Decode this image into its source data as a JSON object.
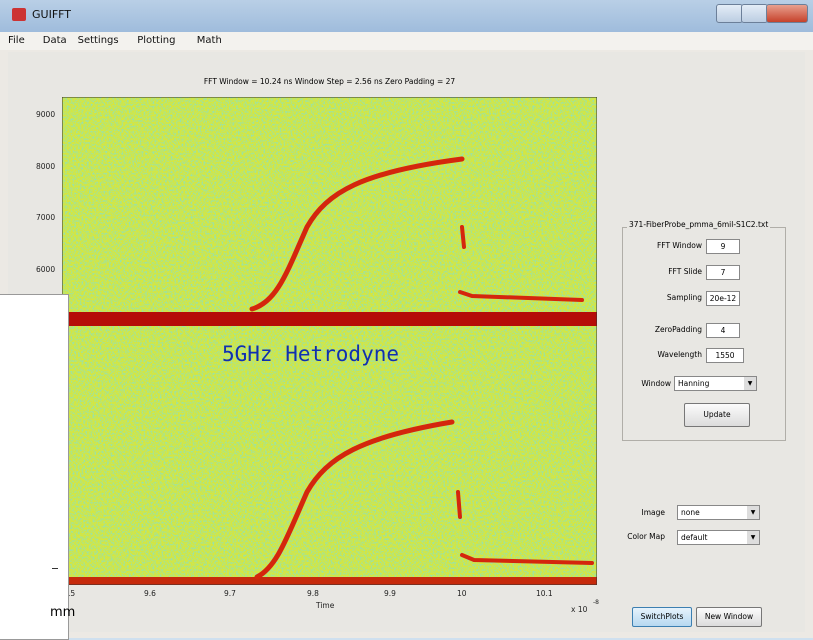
{
  "window": {
    "title": "GUIFFT",
    "menu": [
      "File",
      "Data",
      "Settings",
      "Plotting",
      "Math"
    ]
  },
  "plot": {
    "title": "FFT Window = 10.24 ns Window Step = 2.56 ns Zero Padding  = 27",
    "yticks": [
      "9000",
      "8000",
      "7000",
      "6000"
    ],
    "xticks": [
      ".5",
      "9.6",
      "9.7",
      "9.8",
      "9.9",
      "10",
      "10.1"
    ],
    "xlabel": "Time",
    "x_exponent_base": "x 10",
    "x_exponent": "-8",
    "annotation": "5GHz Hetrodyne"
  },
  "panel": {
    "file": "371-FiberProbe_pmma_6mil-S1C2.txt",
    "fields": [
      {
        "label": "FFT Window",
        "value": "9"
      },
      {
        "label": "FFT Slide",
        "value": "7"
      },
      {
        "label": "Sampling",
        "value": "20e-12"
      },
      {
        "label": "ZeroPadding",
        "value": "4"
      },
      {
        "label": "Wavelength",
        "value": "1550"
      }
    ],
    "window_label": "Window",
    "window_value": "Hanning",
    "update": "Update",
    "image_label": "Image",
    "image_value": "none",
    "colormap_label": "Color Map",
    "colormap_value": "default"
  },
  "buttons": [
    "SwitchPlots",
    "New Window"
  ],
  "overlay": {
    "text": "mm"
  }
}
